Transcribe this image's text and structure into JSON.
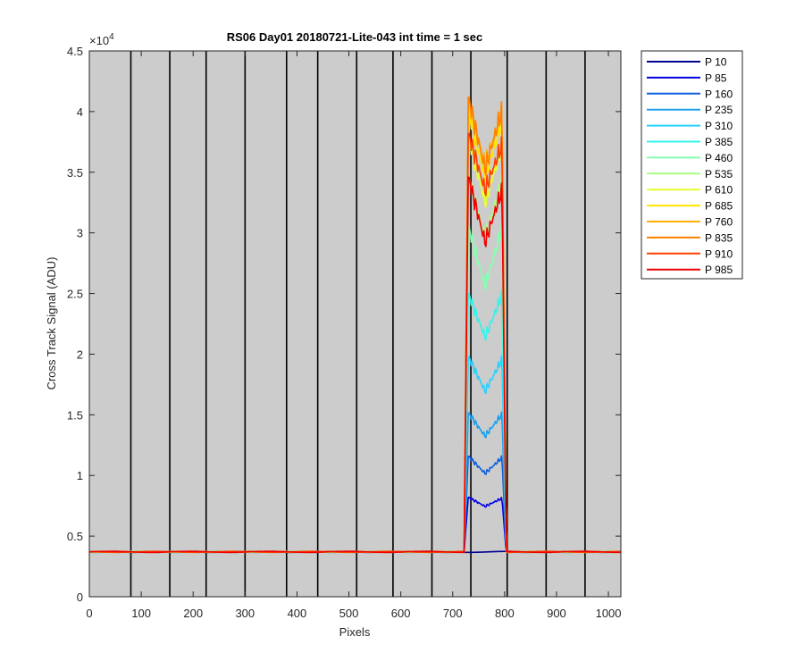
{
  "chart_data": {
    "type": "line",
    "title": "RS06 Day01 20180721-Lite-043 int time = 1 sec",
    "xlabel": "Pixels",
    "ylabel": "Cross Track Signal (ADU)",
    "y_exponent_base": "×10",
    "y_exponent_power": "4",
    "xlim": [
      0,
      1024
    ],
    "ylim": [
      0,
      45000
    ],
    "x_ticks": [
      0,
      100,
      200,
      300,
      400,
      500,
      600,
      700,
      800,
      900,
      1000
    ],
    "x_tick_labels": [
      "0",
      "100",
      "200",
      "300",
      "400",
      "500",
      "600",
      "700",
      "800",
      "900",
      "1000"
    ],
    "y_ticks": [
      0,
      5000,
      10000,
      15000,
      20000,
      25000,
      30000,
      35000,
      40000,
      45000
    ],
    "y_tick_labels": [
      "0",
      "0.5",
      "1",
      "1.5",
      "2",
      "2.5",
      "3",
      "3.5",
      "4",
      "4.5"
    ],
    "vertical_markers_x": [
      80,
      155,
      225,
      300,
      380,
      440,
      515,
      585,
      660,
      735,
      805,
      880,
      955
    ],
    "plot_background": "#cccccc",
    "legend_position": "outside-right",
    "baseline": 3700,
    "plateau_x_range": [
      730,
      795
    ],
    "series": [
      {
        "name": "P 10",
        "color": "#00008f",
        "peak_left": 3700,
        "valley": 3700,
        "peak_right": 3700
      },
      {
        "name": "P 85",
        "color": "#0000e5",
        "peak_left": 8200,
        "valley": 7400,
        "peak_right": 8100
      },
      {
        "name": "P 160",
        "color": "#0f5fe0",
        "peak_left": 11600,
        "valley": 10200,
        "peak_right": 11500
      },
      {
        "name": "P 235",
        "color": "#1aa0ef",
        "peak_left": 15200,
        "valley": 13200,
        "peak_right": 15000
      },
      {
        "name": "P 310",
        "color": "#29d1ff",
        "peak_left": 19800,
        "valley": 16900,
        "peak_right": 19600
      },
      {
        "name": "P 385",
        "color": "#36f2e8",
        "peak_left": 25000,
        "valley": 21400,
        "peak_right": 24900
      },
      {
        "name": "P 460",
        "color": "#86ffb0",
        "peak_left": 30600,
        "valley": 25600,
        "peak_right": 30400
      },
      {
        "name": "P 535",
        "color": "#a8ff80",
        "peak_left": 34800,
        "valley": 29500,
        "peak_right": 34200
      },
      {
        "name": "P 610",
        "color": "#e8ff30",
        "peak_left": 38000,
        "valley": 32500,
        "peak_right": 37200
      },
      {
        "name": "P 685",
        "color": "#ffe600",
        "peak_left": 40200,
        "valley": 34500,
        "peak_right": 39200
      },
      {
        "name": "P 760",
        "color": "#ffb000",
        "peak_left": 41000,
        "valley": 35500,
        "peak_right": 40000
      },
      {
        "name": "P 835",
        "color": "#ff8000",
        "peak_left": 41300,
        "valley": 35200,
        "peak_right": 40100
      },
      {
        "name": "P 910",
        "color": "#ff4000",
        "peak_left": 38200,
        "valley": 33500,
        "peak_right": 37300
      },
      {
        "name": "P 985",
        "color": "#f00000",
        "peak_left": 34700,
        "valley": 29200,
        "peak_right": 33500
      }
    ]
  }
}
